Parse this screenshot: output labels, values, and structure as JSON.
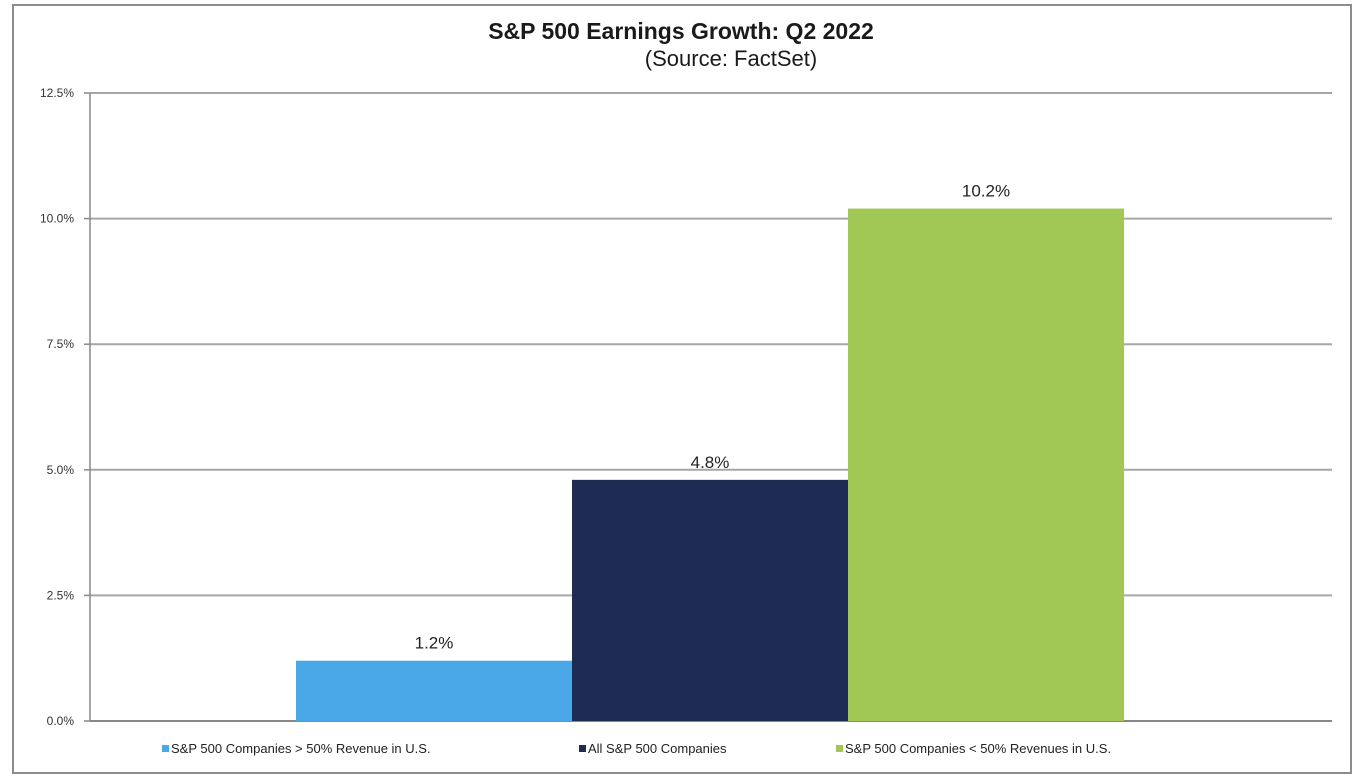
{
  "chart_data": {
    "type": "bar",
    "title": "S&P 500 Earnings Growth: Q2 2022",
    "subtitle": "(Source: FactSet)",
    "xlabel": "",
    "ylabel": "",
    "ylim": [
      0,
      12.5
    ],
    "yticks": [
      0,
      2.5,
      5.0,
      7.5,
      10.0,
      12.5
    ],
    "ytick_labels": [
      "0.0%",
      "2.5%",
      "5.0%",
      "7.5%",
      "10.0%",
      "12.5%"
    ],
    "grid": true,
    "legend_position": "bottom",
    "series": [
      {
        "name": "S&P 500 Companies > 50% Revenue in U.S.",
        "value": 1.2,
        "label": "1.2%",
        "color": "#4aa8e6"
      },
      {
        "name": "All S&P 500 Companies",
        "value": 4.8,
        "label": "4.8%",
        "color": "#1e2b52"
      },
      {
        "name": "S&P 500 Companies < 50% Revenues in U.S.",
        "value": 10.2,
        "label": "10.2%",
        "color": "#a1c854"
      }
    ]
  }
}
